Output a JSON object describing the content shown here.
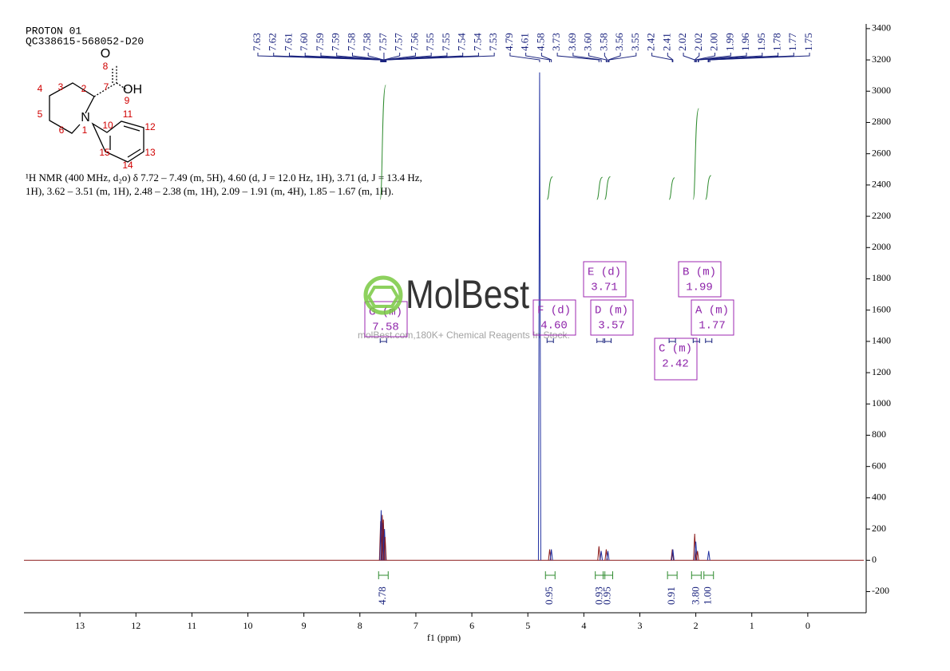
{
  "header": {
    "lines": [
      "PROTON 01",
      "QC338615-568052-D20"
    ]
  },
  "structure": {
    "atoms": [
      "O",
      "OH",
      "N"
    ],
    "numbers": [
      "1",
      "2",
      "3",
      "4",
      "5",
      "6",
      "7",
      "8",
      "9",
      "10",
      "11",
      "12",
      "13",
      "14",
      "15"
    ]
  },
  "description": [
    "¹H NMR (400 MHz, d₂o) δ 7.72 – 7.49 (m, 5H), 4.60 (d, J = 12.0 Hz, 1H), 3.71 (d, J = 13.4 Hz,",
    "1H), 3.62 – 3.51 (m, 1H), 2.48 – 2.38 (m, 1H), 2.09 – 1.91 (m, 4H), 1.85 – 1.67 (m, 1H)."
  ],
  "watermark": {
    "logo": "MolBest",
    "tagline": "molBest.com,180K+ Chemical Reagents In Stock."
  },
  "chart_data": {
    "type": "nmr",
    "x_label": "f1 (ppm)",
    "xlim": [
      14.0,
      -1.0
    ],
    "xticks": [
      13,
      12,
      11,
      10,
      9,
      8,
      7,
      6,
      5,
      4,
      3,
      2,
      1,
      0
    ],
    "ylim": [
      -320,
      3430
    ],
    "yticks": [
      -200,
      0,
      200,
      400,
      600,
      800,
      1000,
      1200,
      1400,
      1600,
      1800,
      2000,
      2200,
      2400,
      2600,
      2800,
      3000,
      3200,
      3400
    ],
    "color": "#8b1a1a",
    "peaks": {
      "x": [
        7.63,
        7.62,
        7.6,
        7.59,
        7.58,
        7.56,
        7.55,
        4.79,
        4.61,
        4.58,
        3.73,
        3.69,
        3.6,
        3.57,
        2.42,
        2.41,
        2.02,
        2.0,
        1.97,
        1.77
      ],
      "values": [
        250,
        320,
        290,
        240,
        260,
        200,
        150,
        3120,
        70,
        70,
        90,
        60,
        70,
        60,
        70,
        70,
        170,
        120,
        60,
        60
      ]
    },
    "peak_labels": [
      "7.63",
      "7.62",
      "7.61",
      "7.60",
      "7.59",
      "7.59",
      "7.58",
      "7.58",
      "7.57",
      "7.57",
      "7.56",
      "7.55",
      "7.55",
      "7.54",
      "7.54",
      "7.53",
      "4.79",
      "4.61",
      "4.58",
      "3.73",
      "3.69",
      "3.60",
      "3.58",
      "3.56",
      "3.55",
      "2.42",
      "2.41",
      "2.02",
      "2.02",
      "2.00",
      "1.99",
      "1.96",
      "1.95",
      "1.78",
      "1.77",
      "1.75"
    ],
    "multiplets": [
      {
        "name": "G (m)",
        "shift": "7.58"
      },
      {
        "name": "F (d)",
        "shift": "4.60"
      },
      {
        "name": "E (d)",
        "shift": "3.71"
      },
      {
        "name": "D (m)",
        "shift": "3.57"
      },
      {
        "name": "C (m)",
        "shift": "2.42"
      },
      {
        "name": "B (m)",
        "shift": "1.99"
      },
      {
        "name": "A (m)",
        "shift": "1.77"
      }
    ],
    "integrals": {
      "x": [
        7.58,
        4.6,
        3.71,
        3.57,
        2.42,
        1.99,
        1.77
      ],
      "values": [
        4.78,
        0.95,
        0.93,
        0.95,
        0.91,
        3.8,
        1
      ],
      "value_labels": [
        "4.78",
        "0.95",
        "0.93",
        "0.95",
        "0.91",
        "3.80",
        "1.00"
      ],
      "color": "#2e8b2e"
    }
  }
}
